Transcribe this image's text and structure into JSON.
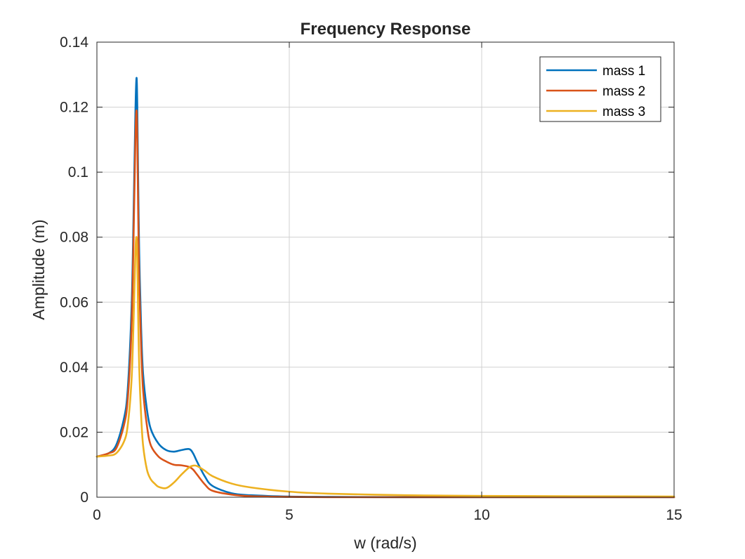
{
  "chart_data": {
    "type": "line",
    "title": "Frequency Response",
    "xlabel": "w (rad/s)",
    "ylabel": "Amplitude (m)",
    "xlim": [
      0,
      15
    ],
    "ylim": [
      0,
      0.14
    ],
    "xticks": [
      0,
      5,
      10,
      15
    ],
    "xtick_labels": [
      "0",
      "5",
      "10",
      "15"
    ],
    "yticks": [
      0,
      0.02,
      0.04,
      0.06,
      0.08,
      0.1,
      0.12,
      0.14
    ],
    "ytick_labels": [
      "0",
      "0.02",
      "0.04",
      "0.06",
      "0.08",
      "0.1",
      "0.12",
      "0.14"
    ],
    "grid": true,
    "legend_position": "top-right",
    "series": [
      {
        "name": "mass 1",
        "color": "#0072BD",
        "x": [
          0,
          0.3,
          0.5,
          0.7,
          0.8,
          0.9,
          0.95,
          1.0,
          1.03,
          1.05,
          1.07,
          1.1,
          1.15,
          1.2,
          1.3,
          1.4,
          1.6,
          1.8,
          2.0,
          2.2,
          2.4,
          2.5,
          2.6,
          2.8,
          3.0,
          3.5,
          4.0,
          5.0,
          6.0,
          8.0,
          10.0,
          15.0
        ],
        "y": [
          0.0125,
          0.0135,
          0.016,
          0.024,
          0.033,
          0.058,
          0.085,
          0.118,
          0.129,
          0.12,
          0.1,
          0.075,
          0.052,
          0.038,
          0.027,
          0.021,
          0.0165,
          0.0145,
          0.014,
          0.0145,
          0.0148,
          0.0135,
          0.011,
          0.0065,
          0.0035,
          0.0012,
          0.0006,
          0.0002,
          0.0001,
          0.0,
          0.0,
          0.0
        ]
      },
      {
        "name": "mass 2",
        "color": "#D95319",
        "x": [
          0,
          0.3,
          0.5,
          0.7,
          0.8,
          0.9,
          0.95,
          1.0,
          1.03,
          1.05,
          1.07,
          1.1,
          1.15,
          1.2,
          1.3,
          1.4,
          1.6,
          1.8,
          2.0,
          2.2,
          2.4,
          2.5,
          2.6,
          2.8,
          3.0,
          3.5,
          4.0,
          5.0,
          6.0,
          8.0,
          10.0,
          15.0
        ],
        "y": [
          0.0125,
          0.0135,
          0.015,
          0.022,
          0.03,
          0.052,
          0.078,
          0.11,
          0.119,
          0.11,
          0.09,
          0.067,
          0.046,
          0.033,
          0.022,
          0.016,
          0.0125,
          0.011,
          0.01,
          0.0098,
          0.0093,
          0.0085,
          0.007,
          0.004,
          0.002,
          0.0008,
          0.0003,
          0.0001,
          0.0,
          0.0,
          0.0,
          0.0
        ]
      },
      {
        "name": "mass 3",
        "color": "#EDB120",
        "x": [
          0,
          0.3,
          0.5,
          0.7,
          0.8,
          0.9,
          0.95,
          1.0,
          1.03,
          1.05,
          1.07,
          1.1,
          1.15,
          1.2,
          1.3,
          1.4,
          1.5,
          1.6,
          1.8,
          2.0,
          2.2,
          2.4,
          2.5,
          2.6,
          2.8,
          3.0,
          3.5,
          4.0,
          5.0,
          6.0,
          8.0,
          10.0,
          15.0
        ],
        "y": [
          0.0125,
          0.0128,
          0.0135,
          0.017,
          0.022,
          0.036,
          0.053,
          0.075,
          0.08,
          0.073,
          0.058,
          0.04,
          0.025,
          0.016,
          0.0085,
          0.0055,
          0.0042,
          0.0032,
          0.0028,
          0.0045,
          0.007,
          0.0092,
          0.0097,
          0.0096,
          0.0082,
          0.0065,
          0.0042,
          0.003,
          0.0017,
          0.0011,
          0.0006,
          0.0004,
          0.0002
        ]
      }
    ]
  }
}
